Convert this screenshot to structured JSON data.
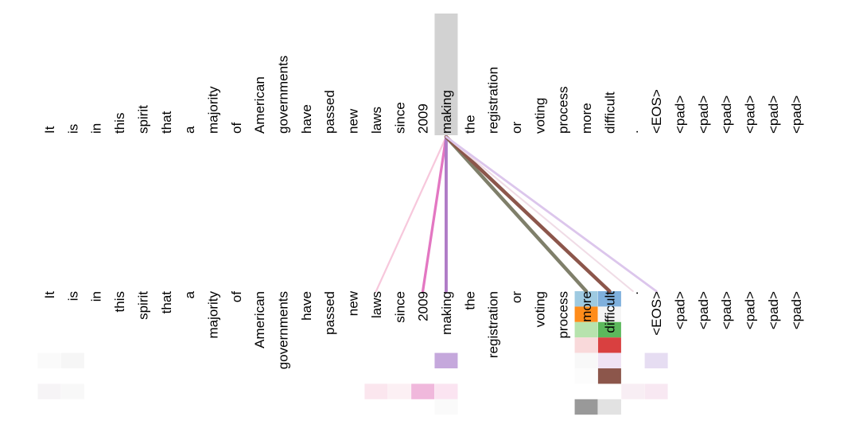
{
  "tokens": [
    "It",
    "is",
    "in",
    "this",
    "spirit",
    "that",
    "a",
    "majority",
    "of",
    "American",
    "governments",
    "have",
    "passed",
    "new",
    "laws",
    "since",
    "2009",
    "making",
    "the",
    "registration",
    "or",
    "voting",
    "process",
    "more",
    "difficult",
    ".",
    "<EOS>",
    "<pad>",
    "<pad>",
    "<pad>",
    "<pad>",
    "<pad>",
    "<pad>"
  ],
  "selected_index": 17,
  "attention_links": [
    {
      "to": 14,
      "color": "#f7c8dc",
      "weight": 0.25
    },
    {
      "to": 16,
      "color": "#e377c2",
      "weight": 0.6
    },
    {
      "to": 17,
      "color": "#b07cc6",
      "weight": 0.8
    },
    {
      "to": 23,
      "color": "#7f7f6a",
      "weight": 1.0
    },
    {
      "to": 24,
      "color": "#8c564b",
      "weight": 1.0
    },
    {
      "to": 25,
      "color": "#f0dce6",
      "weight": 0.2
    },
    {
      "to": 26,
      "color": "#dcc6ec",
      "weight": 0.45
    }
  ],
  "attention_cells": [
    {
      "token": 23,
      "row": 0,
      "color": "#9ecae1"
    },
    {
      "token": 24,
      "row": 0,
      "color": "#7fb0dd"
    },
    {
      "token": 23,
      "row": 1,
      "color": "#ff8c1a"
    },
    {
      "token": 24,
      "row": 1,
      "color": "#f5f5f5"
    },
    {
      "token": 23,
      "row": 2,
      "color": "#b7e3ad"
    },
    {
      "token": 24,
      "row": 2,
      "color": "#5cb85c"
    },
    {
      "token": 23,
      "row": 3,
      "color": "#f9d9da"
    },
    {
      "token": 24,
      "row": 3,
      "color": "#d94040"
    },
    {
      "token": 0,
      "row": 4,
      "color": "#fafafa"
    },
    {
      "token": 1,
      "row": 4,
      "color": "#f6f6f6"
    },
    {
      "token": 17,
      "row": 4,
      "color": "#c5a8dc"
    },
    {
      "token": 23,
      "row": 4,
      "color": "#f8f8f8"
    },
    {
      "token": 24,
      "row": 4,
      "color": "#efe2f3"
    },
    {
      "token": 26,
      "row": 4,
      "color": "#e6ddf2"
    },
    {
      "token": 23,
      "row": 5,
      "color": "#fcfcfc"
    },
    {
      "token": 24,
      "row": 5,
      "color": "#8c564b"
    },
    {
      "token": 0,
      "row": 6,
      "color": "#f6f4f6"
    },
    {
      "token": 1,
      "row": 6,
      "color": "#f8f8f8"
    },
    {
      "token": 14,
      "row": 6,
      "color": "#fbe6ee"
    },
    {
      "token": 15,
      "row": 6,
      "color": "#fcf0f4"
    },
    {
      "token": 16,
      "row": 6,
      "color": "#f0b8dc"
    },
    {
      "token": 17,
      "row": 6,
      "color": "#fbe4f1"
    },
    {
      "token": 25,
      "row": 6,
      "color": "#f8eef4"
    },
    {
      "token": 26,
      "row": 6,
      "color": "#f8e8f2"
    },
    {
      "token": 17,
      "row": 7,
      "color": "#fafafa"
    },
    {
      "token": 23,
      "row": 7,
      "color": "#999999"
    },
    {
      "token": 24,
      "row": 7,
      "color": "#e2e2e2"
    }
  ]
}
